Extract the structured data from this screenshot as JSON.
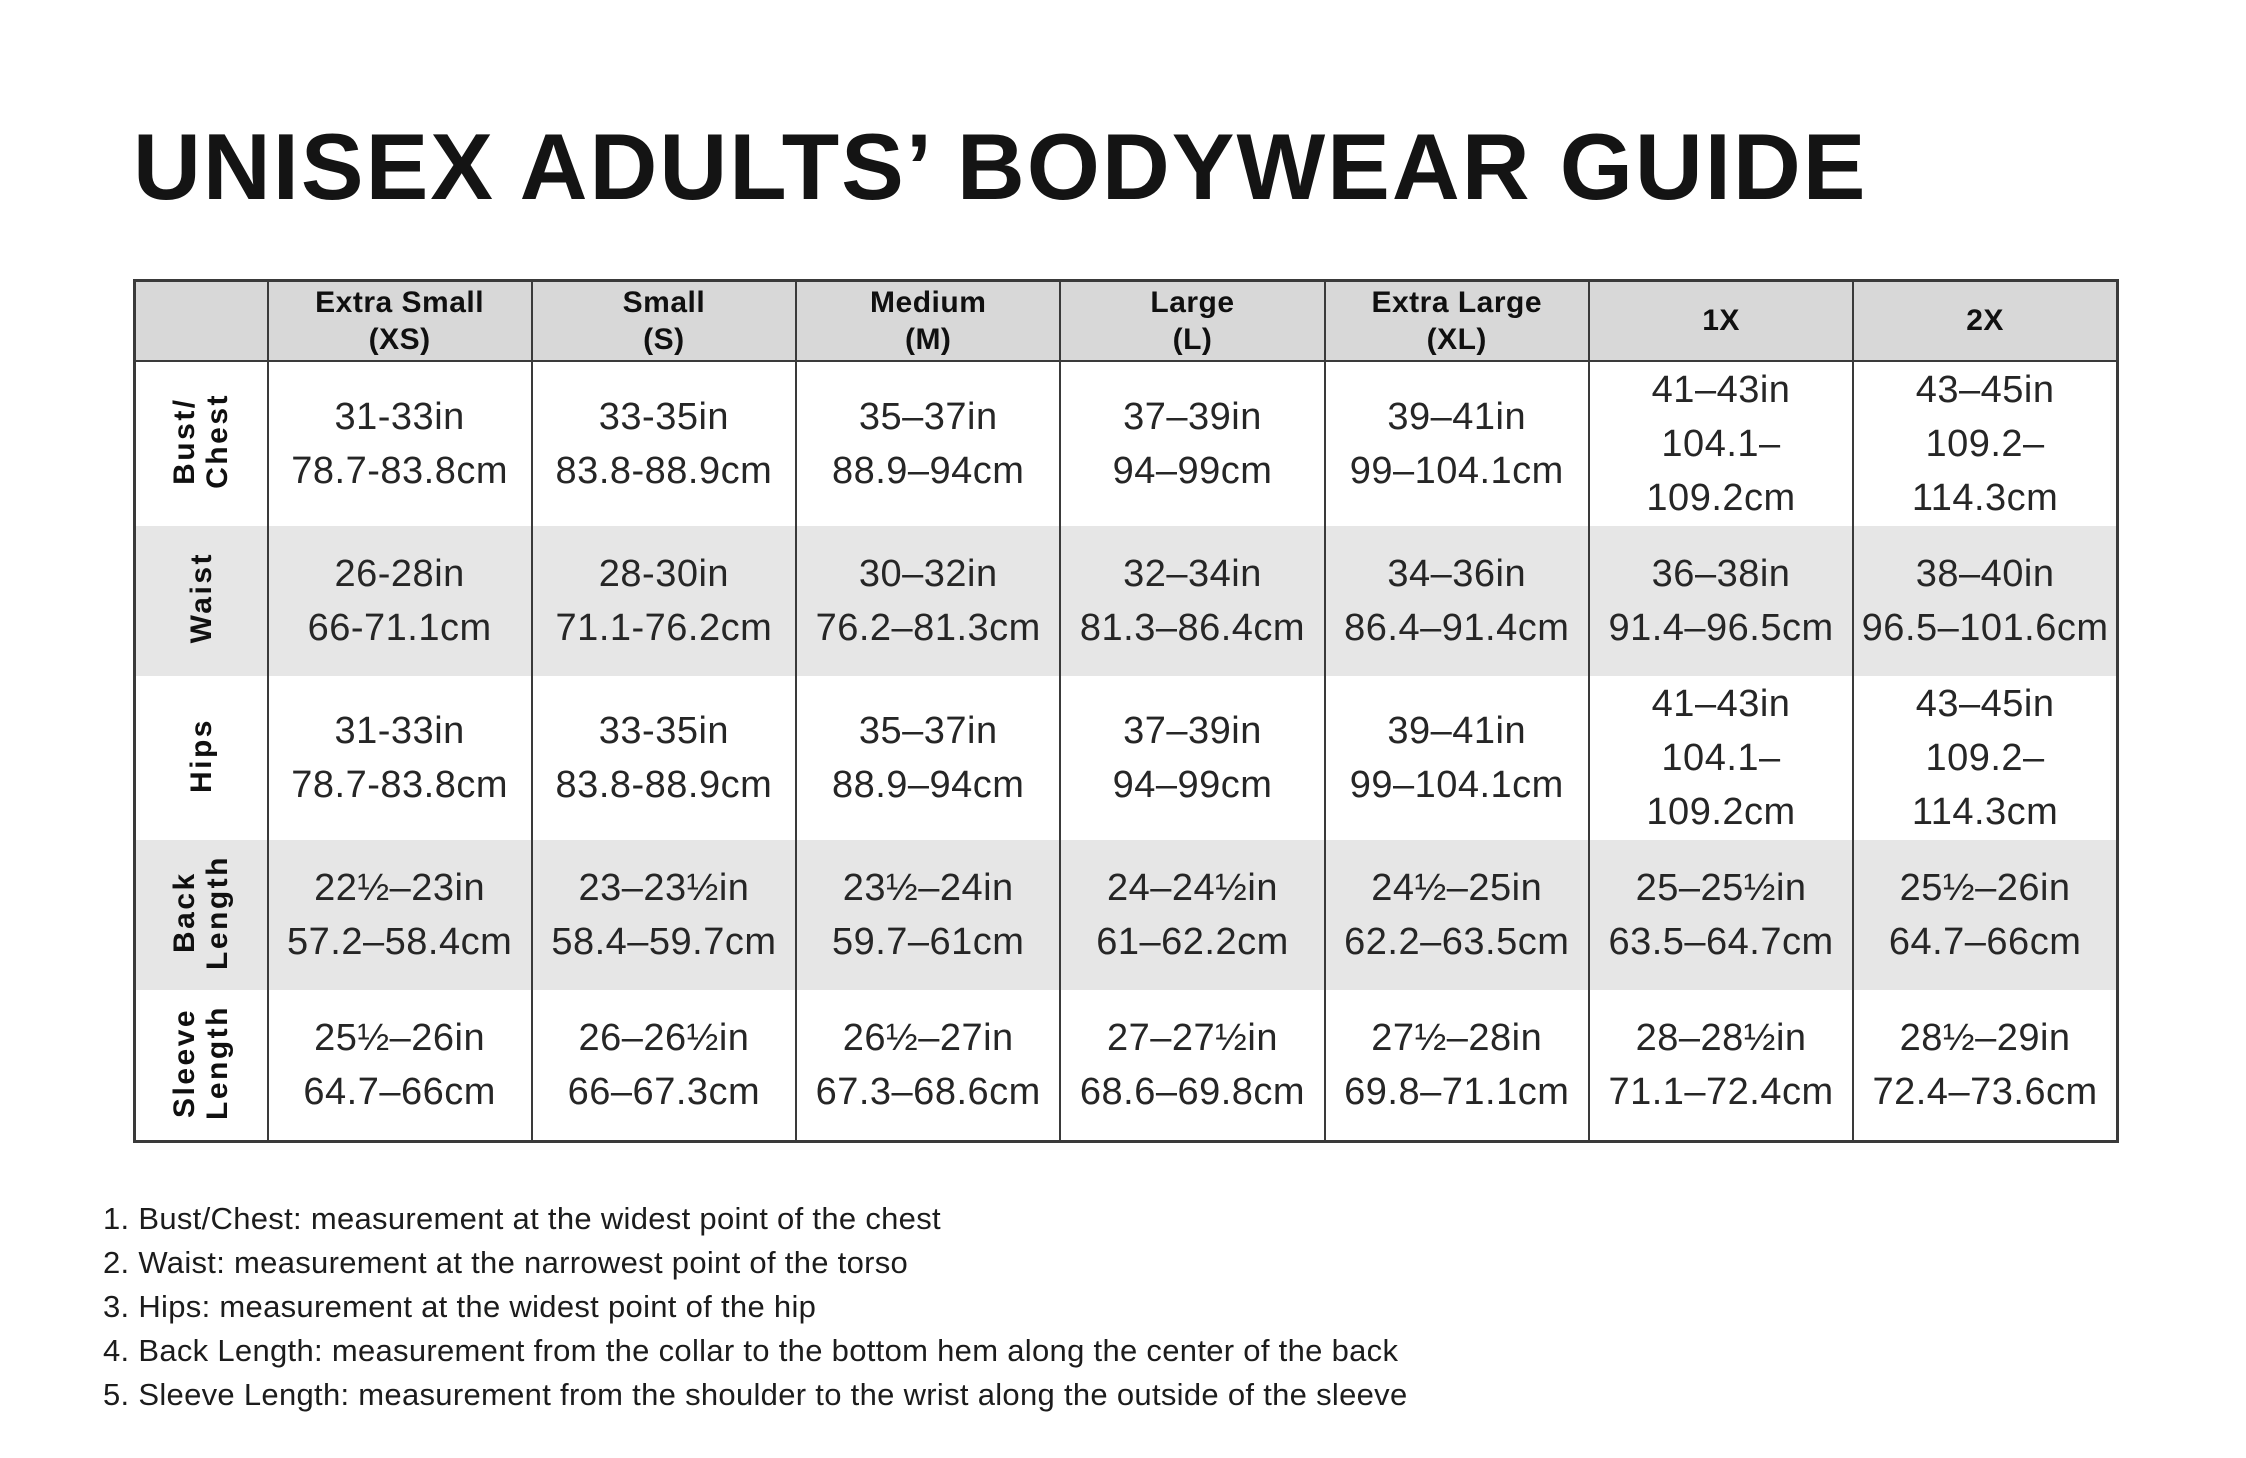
{
  "page": {
    "title": "UNISEX ADULTS’ BODYWEAR GUIDE"
  },
  "colors": {
    "header_bg": "#d8d8d8",
    "alt_row_bg": "#e6e6e6",
    "border": "#3a3a3a",
    "text": "#1f1f1f"
  },
  "size_table": {
    "columns": [
      {
        "id": "xs",
        "lines": [
          "Extra Small",
          "(XS)"
        ]
      },
      {
        "id": "s",
        "lines": [
          "Small",
          "(S)"
        ]
      },
      {
        "id": "m",
        "lines": [
          "Medium",
          "(M)"
        ]
      },
      {
        "id": "l",
        "lines": [
          "Large",
          "(L)"
        ]
      },
      {
        "id": "xl",
        "lines": [
          "Extra Large",
          "(XL)"
        ]
      },
      {
        "id": "1x",
        "lines": [
          "1X"
        ]
      },
      {
        "id": "2x",
        "lines": [
          "2X"
        ]
      }
    ],
    "rows": [
      {
        "id": "bust-chest",
        "label_lines": [
          "Bust/",
          "Chest"
        ],
        "cells": [
          {
            "in": "31-33in",
            "cm": "78.7-83.8cm"
          },
          {
            "in": "33-35in",
            "cm": "83.8-88.9cm"
          },
          {
            "in": "35–37in",
            "cm": "88.9–94cm"
          },
          {
            "in": "37–39in",
            "cm": "94–99cm"
          },
          {
            "in": "39–41in",
            "cm": "99–104.1cm"
          },
          {
            "in": "41–43in",
            "cm": "104.1–109.2cm"
          },
          {
            "in": "43–45in",
            "cm": "109.2–114.3cm"
          }
        ]
      },
      {
        "id": "waist",
        "label_lines": [
          "Waist"
        ],
        "cells": [
          {
            "in": "26-28in",
            "cm": "66-71.1cm"
          },
          {
            "in": "28-30in",
            "cm": "71.1-76.2cm"
          },
          {
            "in": "30–32in",
            "cm": "76.2–81.3cm"
          },
          {
            "in": "32–34in",
            "cm": "81.3–86.4cm"
          },
          {
            "in": "34–36in",
            "cm": "86.4–91.4cm"
          },
          {
            "in": "36–38in",
            "cm": "91.4–96.5cm"
          },
          {
            "in": "38–40in",
            "cm": "96.5–101.6cm"
          }
        ]
      },
      {
        "id": "hips",
        "label_lines": [
          "Hips"
        ],
        "cells": [
          {
            "in": "31-33in",
            "cm": "78.7-83.8cm"
          },
          {
            "in": "33-35in",
            "cm": "83.8-88.9cm"
          },
          {
            "in": "35–37in",
            "cm": "88.9–94cm"
          },
          {
            "in": "37–39in",
            "cm": "94–99cm"
          },
          {
            "in": "39–41in",
            "cm": "99–104.1cm"
          },
          {
            "in": "41–43in",
            "cm": "104.1–109.2cm"
          },
          {
            "in": "43–45in",
            "cm": "109.2–114.3cm"
          }
        ]
      },
      {
        "id": "back-length",
        "label_lines": [
          "Back",
          "Length"
        ],
        "cells": [
          {
            "in": "22½–23in",
            "cm": "57.2–58.4cm"
          },
          {
            "in": "23–23½in",
            "cm": "58.4–59.7cm"
          },
          {
            "in": "23½–24in",
            "cm": "59.7–61cm"
          },
          {
            "in": "24–24½in",
            "cm": "61–62.2cm"
          },
          {
            "in": "24½–25in",
            "cm": "62.2–63.5cm"
          },
          {
            "in": "25–25½in",
            "cm": "63.5–64.7cm"
          },
          {
            "in": "25½–26in",
            "cm": "64.7–66cm"
          }
        ]
      },
      {
        "id": "sleeve-length",
        "label_lines": [
          "Sleeve",
          "Length"
        ],
        "cells": [
          {
            "in": "25½–26in",
            "cm": "64.7–66cm"
          },
          {
            "in": "26–26½in",
            "cm": "66–67.3cm"
          },
          {
            "in": "26½–27in",
            "cm": "67.3–68.6cm"
          },
          {
            "in": "27–27½in",
            "cm": "68.6–69.8cm"
          },
          {
            "in": "27½–28in",
            "cm": "69.8–71.1cm"
          },
          {
            "in": "28–28½in",
            "cm": "71.1–72.4cm"
          },
          {
            "in": "28½–29in",
            "cm": "72.4–73.6cm"
          }
        ]
      }
    ]
  },
  "footnotes": [
    "1. Bust/Chest: measurement at the widest point of the chest",
    "2. Waist: measurement at the narrowest point of the torso",
    "3. Hips: measurement at the widest point of the hip",
    "4. Back Length: measurement from the collar to the bottom hem along the center of the back",
    "5. Sleeve Length: measurement from the shoulder to the wrist along the outside of the sleeve"
  ]
}
